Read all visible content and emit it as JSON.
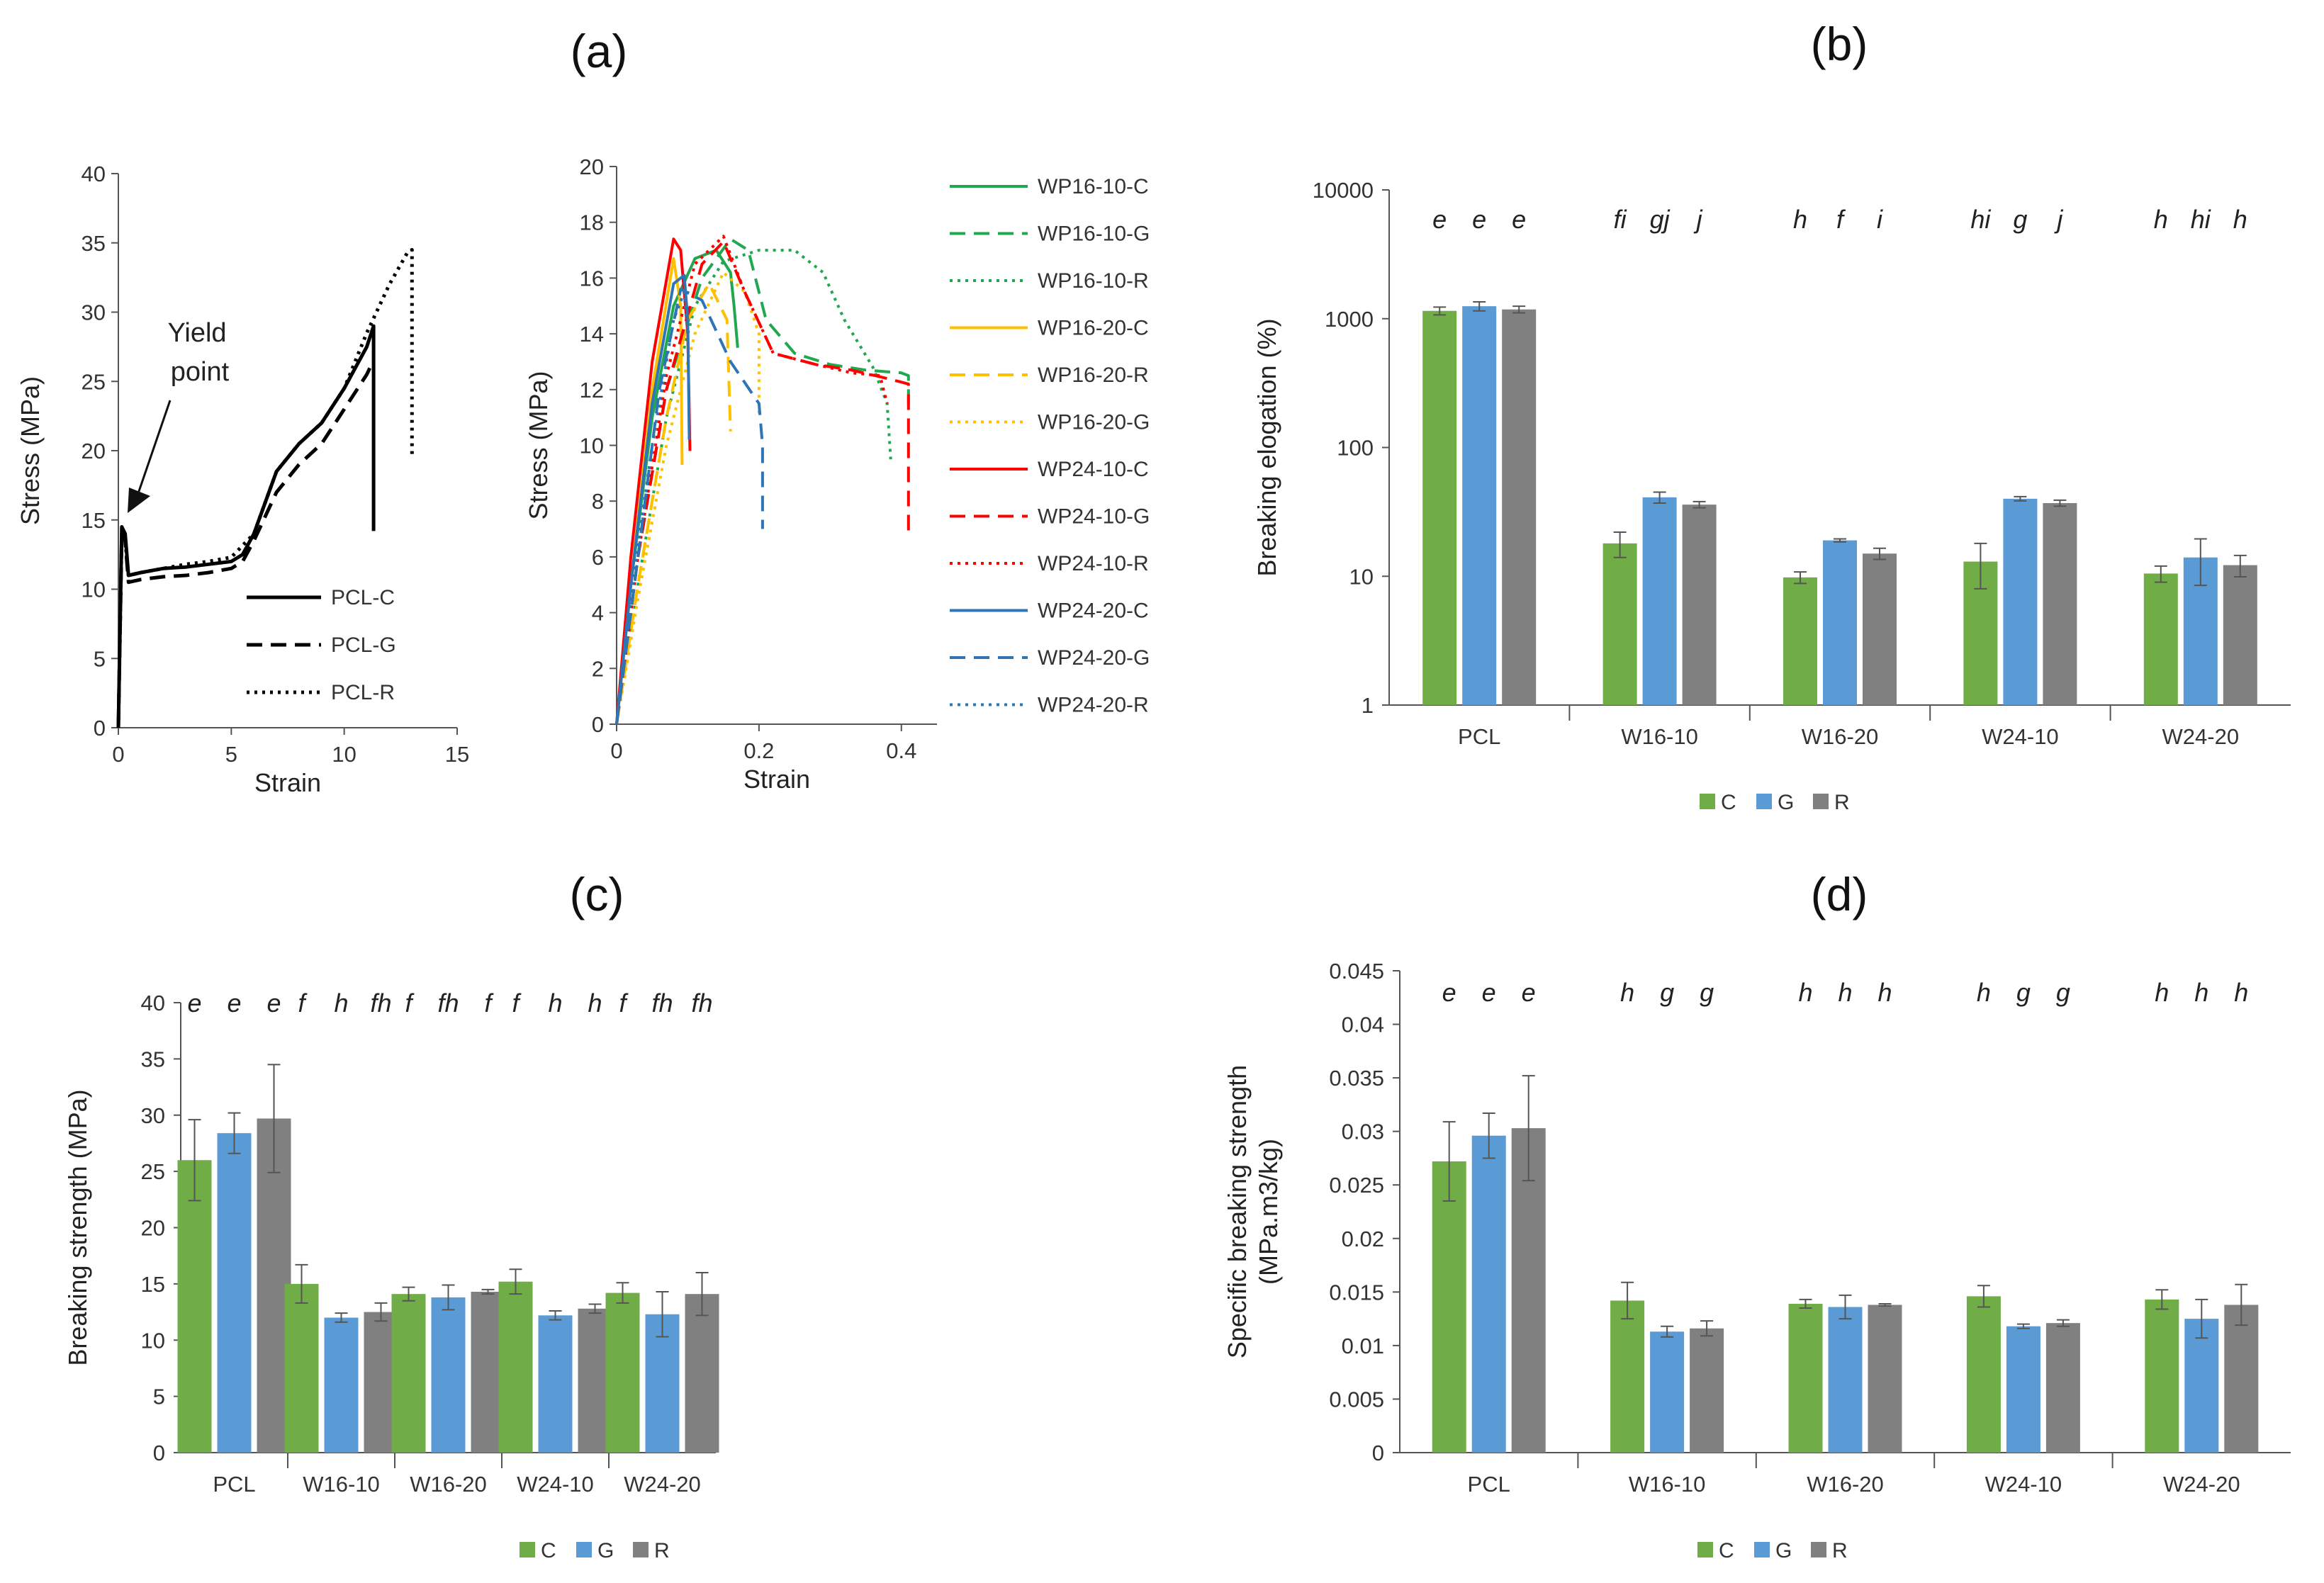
{
  "panels": {
    "a": "(a)",
    "b": "(b)",
    "c": "(c)",
    "d": "(d)"
  },
  "colors": {
    "C": "#70ad47",
    "G": "#5b9bd5",
    "R": "#808080"
  },
  "chart_data": [
    {
      "id": "a1",
      "type": "line",
      "xlabel": "Strain",
      "ylabel": "Stress (MPa)",
      "xlim": [
        0,
        15
      ],
      "ylim": [
        0,
        40
      ],
      "xticks": [
        0,
        5,
        10,
        15
      ],
      "yticks": [
        0,
        5,
        10,
        15,
        20,
        25,
        30,
        35,
        40
      ],
      "annotation": {
        "line1": "Yield",
        "line2": "point"
      },
      "series": [
        {
          "name": "PCL-C",
          "color": "#000000",
          "dash": "solid",
          "x": [
            0,
            0.15,
            0.3,
            0.45,
            1,
            2,
            3,
            4,
            5,
            5.5,
            6,
            7,
            8,
            9,
            10,
            11,
            11.3,
            11.3
          ],
          "y": [
            0,
            14.5,
            14,
            11,
            11.2,
            11.5,
            11.6,
            11.8,
            12,
            12.5,
            14,
            18.5,
            20.5,
            22,
            24.5,
            27.5,
            29,
            14.2
          ]
        },
        {
          "name": "PCL-G",
          "color": "#000000",
          "dash": "dashed",
          "x": [
            0,
            0.15,
            0.3,
            0.45,
            1,
            2,
            3,
            4,
            5,
            5.5,
            6,
            7,
            8,
            9,
            10,
            11,
            11.2
          ],
          "y": [
            0,
            14,
            13.5,
            10.5,
            10.7,
            10.9,
            11,
            11.2,
            11.5,
            12,
            13.5,
            17,
            19,
            20.5,
            23,
            25.5,
            26.2
          ]
        },
        {
          "name": "PCL-R",
          "color": "#000000",
          "dash": "dotted",
          "x": [
            0,
            0.15,
            0.3,
            0.45,
            1,
            2,
            3,
            4,
            5,
            6,
            7,
            8,
            9,
            10,
            11,
            12,
            12.8,
            13,
            13
          ],
          "y": [
            0,
            14,
            13.5,
            11,
            11.2,
            11.5,
            11.8,
            12,
            12.3,
            14,
            18.5,
            20.5,
            22,
            24.5,
            28.5,
            32,
            34.3,
            34.5,
            19.5
          ]
        }
      ]
    },
    {
      "id": "a2",
      "type": "line",
      "xlabel": "Strain",
      "ylabel": "Stress (MPa)",
      "xlim": [
        0,
        0.45
      ],
      "ylim": [
        0,
        20
      ],
      "xticks": [
        0,
        0.2,
        0.4
      ],
      "xticklabels": [
        "0",
        "0.2",
        "0.4"
      ],
      "yticks": [
        0,
        2,
        4,
        6,
        8,
        10,
        12,
        14,
        16,
        18,
        20
      ],
      "series": [
        {
          "name": "WP16-10-C",
          "color": "#1fa84f",
          "dash": "solid",
          "x": [
            0,
            0.02,
            0.05,
            0.08,
            0.11,
            0.14,
            0.16,
            0.165,
            0.17
          ],
          "y": [
            0,
            5,
            11,
            15,
            16.7,
            17,
            16.2,
            15,
            13.5
          ]
        },
        {
          "name": "WP16-10-G",
          "color": "#1fa84f",
          "dash": "dashed",
          "x": [
            0,
            0.03,
            0.07,
            0.12,
            0.16,
            0.185,
            0.21,
            0.25,
            0.3,
            0.35,
            0.4,
            0.41,
            0.41
          ],
          "y": [
            0,
            6,
            12,
            16,
            17.4,
            17,
            14.5,
            13.3,
            12.9,
            12.7,
            12.6,
            12.5,
            11.3
          ]
        },
        {
          "name": "WP16-10-R",
          "color": "#1fa84f",
          "dash": "dotted",
          "x": [
            0,
            0.03,
            0.07,
            0.11,
            0.15,
            0.2,
            0.25,
            0.29,
            0.32,
            0.36,
            0.38,
            0.385
          ],
          "y": [
            0,
            5,
            11,
            15,
            16.6,
            17,
            17,
            16.2,
            14.5,
            12.8,
            11.5,
            9.5
          ]
        },
        {
          "name": "WP16-20-C",
          "color": "#ffc000",
          "dash": "solid",
          "x": [
            0,
            0.02,
            0.05,
            0.08,
            0.09,
            0.092
          ],
          "y": [
            0,
            5,
            12,
            16.7,
            15,
            9.3
          ]
        },
        {
          "name": "WP16-20-R",
          "color": "#ffc000",
          "dash": "dashed",
          "x": [
            0,
            0.03,
            0.07,
            0.1,
            0.13,
            0.155,
            0.16
          ],
          "y": [
            0,
            5,
            11,
            14.5,
            15.8,
            14.5,
            10.5
          ]
        },
        {
          "name": "WP16-20-G",
          "color": "#ffc000",
          "dash": "dotted",
          "x": [
            0,
            0.03,
            0.07,
            0.11,
            0.15,
            0.18,
            0.2,
            0.2
          ],
          "y": [
            0,
            4.5,
            10,
            14,
            16.2,
            15.5,
            14,
            11
          ]
        },
        {
          "name": "WP24-10-C",
          "color": "#ff0000",
          "dash": "solid",
          "x": [
            0,
            0.02,
            0.05,
            0.08,
            0.09,
            0.1,
            0.103
          ],
          "y": [
            0,
            6,
            13,
            17.4,
            17,
            14,
            9.8
          ]
        },
        {
          "name": "WP24-10-G",
          "color": "#ff0000",
          "dash": "dashed",
          "x": [
            0,
            0.03,
            0.07,
            0.12,
            0.15,
            0.18,
            0.22,
            0.28,
            0.33,
            0.38,
            0.41,
            0.41
          ],
          "y": [
            0,
            6,
            12,
            16.5,
            17.3,
            15.5,
            13.3,
            12.9,
            12.7,
            12.4,
            12.2,
            6.8
          ]
        },
        {
          "name": "WP24-10-R",
          "color": "#ff0000",
          "dash": "dotted",
          "x": [
            0,
            0.03,
            0.07,
            0.11,
            0.15,
            0.18,
            0.22,
            0.28,
            0.33,
            0.37,
            0.38
          ],
          "y": [
            0,
            6,
            12.5,
            16.5,
            17.5,
            15.5,
            13.3,
            12.9,
            12.6,
            12.5,
            11.5
          ]
        },
        {
          "name": "WP24-20-C",
          "color": "#2e75b6",
          "dash": "solid",
          "x": [
            0,
            0.02,
            0.05,
            0.08,
            0.095,
            0.1,
            0.102
          ],
          "y": [
            0,
            5,
            11.5,
            15.8,
            16.1,
            14.5,
            10.2
          ]
        },
        {
          "name": "WP24-20-G",
          "color": "#2e75b6",
          "dash": "dashed",
          "x": [
            0,
            0.03,
            0.06,
            0.09,
            0.12,
            0.16,
            0.2,
            0.205,
            0.205
          ],
          "y": [
            0,
            6,
            12,
            15.6,
            15.2,
            13,
            11.5,
            10,
            7
          ]
        },
        {
          "name": "WP24-20-R",
          "color": "#2e75b6",
          "dash": "dotted",
          "x": [
            0,
            0.02,
            0.05,
            0.08,
            0.095,
            0.1
          ],
          "y": [
            0,
            4.5,
            10,
            14.5,
            15.5,
            14
          ]
        }
      ]
    },
    {
      "id": "b",
      "type": "bar",
      "ylabel": "Breaking elogation (%)",
      "scale": "log",
      "ylim": [
        1,
        10000
      ],
      "yticks": [
        1,
        10,
        100,
        1000,
        10000
      ],
      "categories": [
        "PCL",
        "W16-10",
        "W16-20",
        "W24-10",
        "W24-20"
      ],
      "series": [
        {
          "name": "C",
          "values": [
            1150,
            18,
            9.8,
            13,
            10.5
          ],
          "errors": [
            80,
            4,
            1,
            5,
            1.5
          ]
        },
        {
          "name": "G",
          "values": [
            1250,
            41,
            19,
            40,
            14
          ],
          "errors": [
            100,
            4,
            0.5,
            1.5,
            5.5
          ]
        },
        {
          "name": "R",
          "values": [
            1180,
            36,
            15,
            37,
            12.2
          ],
          "errors": [
            70,
            2,
            1.5,
            2,
            2.3
          ]
        }
      ],
      "significance": [
        [
          "e",
          "e",
          "e"
        ],
        [
          "fi",
          "gj",
          "j"
        ],
        [
          "h",
          "f",
          "i"
        ],
        [
          "hi",
          "g",
          "j"
        ],
        [
          "h",
          "hi",
          "h"
        ]
      ]
    },
    {
      "id": "c",
      "type": "bar",
      "ylabel": "Breaking strength (MPa)",
      "ylim": [
        0,
        40
      ],
      "yticks": [
        0,
        5,
        10,
        15,
        20,
        25,
        30,
        35,
        40
      ],
      "categories": [
        "PCL",
        "W16-10",
        "W16-20",
        "W24-10",
        "W24-20"
      ],
      "series": [
        {
          "name": "C",
          "values": [
            26,
            15,
            14.1,
            15.2,
            14.2
          ],
          "errors": [
            3.6,
            1.7,
            0.6,
            1.1,
            0.9
          ]
        },
        {
          "name": "G",
          "values": [
            28.4,
            12,
            13.8,
            12.2,
            12.3
          ],
          "errors": [
            1.8,
            0.4,
            1.1,
            0.4,
            2
          ]
        },
        {
          "name": "R",
          "values": [
            29.7,
            12.5,
            14.3,
            12.8,
            14.1
          ],
          "errors": [
            4.8,
            0.8,
            0.2,
            0.4,
            1.9
          ]
        }
      ],
      "significance": [
        [
          "e",
          "e",
          "e"
        ],
        [
          "f",
          "h",
          "fh"
        ],
        [
          "f",
          "fh",
          "f"
        ],
        [
          "f",
          "h",
          "h"
        ],
        [
          "f",
          "fh",
          "fh"
        ]
      ]
    },
    {
      "id": "d",
      "type": "bar",
      "ylabel_line1": "Specific breaking strength",
      "ylabel_line2": "(MPa.m3/kg)",
      "ylim": [
        0,
        0.045
      ],
      "yticks": [
        0,
        0.005,
        0.01,
        0.015,
        0.02,
        0.025,
        0.03,
        0.035,
        0.04,
        0.045
      ],
      "yticklabels": [
        "0",
        "0.005",
        "0.01",
        "0.015",
        "0.02",
        "0.025",
        "0.03",
        "0.035",
        "0.04",
        "0.045"
      ],
      "categories": [
        "PCL",
        "W16-10",
        "W16-20",
        "W24-10",
        "W24-20"
      ],
      "series": [
        {
          "name": "C",
          "values": [
            0.0272,
            0.0142,
            0.0139,
            0.0146,
            0.0143
          ],
          "errors": [
            0.0037,
            0.0017,
            0.0004,
            0.001,
            0.0009
          ]
        },
        {
          "name": "G",
          "values": [
            0.0296,
            0.0113,
            0.0136,
            0.0118,
            0.0125
          ],
          "errors": [
            0.0021,
            0.0005,
            0.0011,
            0.0002,
            0.0018
          ]
        },
        {
          "name": "R",
          "values": [
            0.0303,
            0.0116,
            0.0138,
            0.0121,
            0.0138
          ],
          "errors": [
            0.0049,
            0.0007,
            0.0001,
            0.0003,
            0.0019
          ]
        }
      ],
      "significance": [
        [
          "e",
          "e",
          "e"
        ],
        [
          "h",
          "g",
          "g"
        ],
        [
          "h",
          "h",
          "h"
        ],
        [
          "h",
          "g",
          "g"
        ],
        [
          "h",
          "h",
          "h"
        ]
      ]
    }
  ]
}
